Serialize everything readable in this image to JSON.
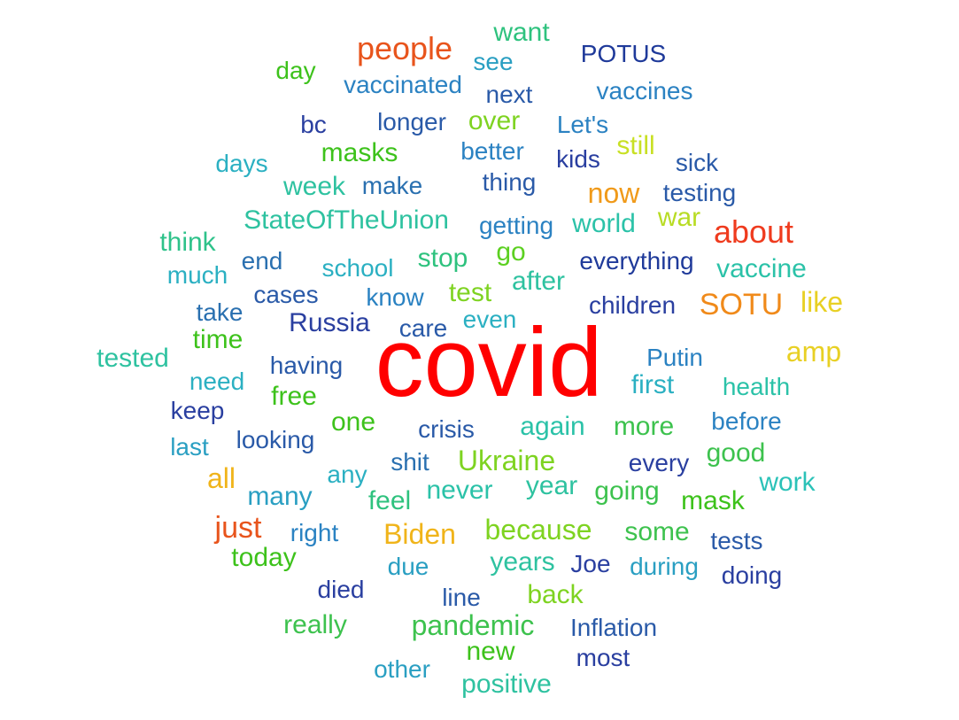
{
  "words": [
    {
      "text": "covid",
      "color": "#ff0000"
    },
    {
      "text": "people",
      "color": "#e8541c"
    },
    {
      "text": "want",
      "color": "#2ec27e"
    },
    {
      "text": "POTUS",
      "color": "#1f3a9a"
    },
    {
      "text": "day",
      "color": "#3dc21b"
    },
    {
      "text": "see",
      "color": "#2a9fc2"
    },
    {
      "text": "vaccinated",
      "color": "#2b82c2"
    },
    {
      "text": "next",
      "color": "#2a5aa8"
    },
    {
      "text": "vaccines",
      "color": "#2b82c2"
    },
    {
      "text": "bc",
      "color": "#2a3fa0"
    },
    {
      "text": "longer",
      "color": "#2a5aa8"
    },
    {
      "text": "over",
      "color": "#7ed321"
    },
    {
      "text": "Let's",
      "color": "#2b82c2"
    },
    {
      "text": "still",
      "color": "#c8e024"
    },
    {
      "text": "masks",
      "color": "#3dc21b"
    },
    {
      "text": "better",
      "color": "#2b82c2"
    },
    {
      "text": "kids",
      "color": "#2a3fa0"
    },
    {
      "text": "days",
      "color": "#2bb0c2"
    },
    {
      "text": "sick",
      "color": "#2a5aa8"
    },
    {
      "text": "week",
      "color": "#2ec2a0"
    },
    {
      "text": "make",
      "color": "#2a70b0"
    },
    {
      "text": "thing",
      "color": "#2a5aa8"
    },
    {
      "text": "now",
      "color": "#f09a1a"
    },
    {
      "text": "testing",
      "color": "#2a5aa8"
    },
    {
      "text": "StateOfTheUnion",
      "color": "#2ec2a0"
    },
    {
      "text": "getting",
      "color": "#2b82c2"
    },
    {
      "text": "world",
      "color": "#2bc2a8"
    },
    {
      "text": "war",
      "color": "#b8dc24"
    },
    {
      "text": "about",
      "color": "#ef3b1e"
    },
    {
      "text": "think",
      "color": "#2ec28a"
    },
    {
      "text": "go",
      "color": "#5cd021"
    },
    {
      "text": "end",
      "color": "#2a70b0"
    },
    {
      "text": "school",
      "color": "#2bb0c2"
    },
    {
      "text": "stop",
      "color": "#2ec27e"
    },
    {
      "text": "everything",
      "color": "#1f3a9a"
    },
    {
      "text": "vaccine",
      "color": "#2bc2a8"
    },
    {
      "text": "much",
      "color": "#2bb0c2"
    },
    {
      "text": "after",
      "color": "#2ec2a0"
    },
    {
      "text": "cases",
      "color": "#2a5aa8"
    },
    {
      "text": "know",
      "color": "#2a82c2"
    },
    {
      "text": "test",
      "color": "#7ed321"
    },
    {
      "text": "children",
      "color": "#2a3fa0"
    },
    {
      "text": "SOTU",
      "color": "#f08a1a"
    },
    {
      "text": "like",
      "color": "#e8d024"
    },
    {
      "text": "take",
      "color": "#2a70b0"
    },
    {
      "text": "Russia",
      "color": "#2a3fa0"
    },
    {
      "text": "even",
      "color": "#2bb0c2"
    },
    {
      "text": "care",
      "color": "#2a5aa8"
    },
    {
      "text": "time",
      "color": "#3dc21b"
    },
    {
      "text": "amp",
      "color": "#e8d024"
    },
    {
      "text": "tested",
      "color": "#2ec2a0"
    },
    {
      "text": "Putin",
      "color": "#2b82c2"
    },
    {
      "text": "having",
      "color": "#2a5aa8"
    },
    {
      "text": "need",
      "color": "#2bb0c2"
    },
    {
      "text": "first",
      "color": "#2bb0c2"
    },
    {
      "text": "health",
      "color": "#2bc2a8"
    },
    {
      "text": "free",
      "color": "#3dc21b"
    },
    {
      "text": "keep",
      "color": "#2a3fa0"
    },
    {
      "text": "one",
      "color": "#3dc21b"
    },
    {
      "text": "crisis",
      "color": "#2a5aa8"
    },
    {
      "text": "again",
      "color": "#2bc2a8"
    },
    {
      "text": "more",
      "color": "#3dc24e"
    },
    {
      "text": "before",
      "color": "#2b82c2"
    },
    {
      "text": "last",
      "color": "#2a9fc2"
    },
    {
      "text": "looking",
      "color": "#2a5aa8"
    },
    {
      "text": "good",
      "color": "#3dc24e"
    },
    {
      "text": "any",
      "color": "#2bb0c2"
    },
    {
      "text": "shit",
      "color": "#2a70b0"
    },
    {
      "text": "Ukraine",
      "color": "#7ed321"
    },
    {
      "text": "every",
      "color": "#2a3fa0"
    },
    {
      "text": "all",
      "color": "#f0b41a"
    },
    {
      "text": "work",
      "color": "#2bc2b8"
    },
    {
      "text": "many",
      "color": "#2a9fc2"
    },
    {
      "text": "feel",
      "color": "#2ec27e"
    },
    {
      "text": "never",
      "color": "#2bc2a8"
    },
    {
      "text": "year",
      "color": "#2ec2a0"
    },
    {
      "text": "going",
      "color": "#3dc24e"
    },
    {
      "text": "mask",
      "color": "#3dc21b"
    },
    {
      "text": "just",
      "color": "#e8541c"
    },
    {
      "text": "Biden",
      "color": "#f0b41a"
    },
    {
      "text": "because",
      "color": "#7ed321"
    },
    {
      "text": "some",
      "color": "#3dc24e"
    },
    {
      "text": "right",
      "color": "#2a82c2"
    },
    {
      "text": "tests",
      "color": "#2a5aa8"
    },
    {
      "text": "today",
      "color": "#3dc21b"
    },
    {
      "text": "due",
      "color": "#2a9fc2"
    },
    {
      "text": "years",
      "color": "#2ec2a0"
    },
    {
      "text": "Joe",
      "color": "#2a3fa0"
    },
    {
      "text": "during",
      "color": "#2a9fc2"
    },
    {
      "text": "doing",
      "color": "#2a3fa0"
    },
    {
      "text": "died",
      "color": "#2a3fa0"
    },
    {
      "text": "line",
      "color": "#2a5aa8"
    },
    {
      "text": "back",
      "color": "#7ed321"
    },
    {
      "text": "really",
      "color": "#3dc24e"
    },
    {
      "text": "pandemic",
      "color": "#3dc24e"
    },
    {
      "text": "Inflation",
      "color": "#2a5aa8"
    },
    {
      "text": "new",
      "color": "#3dc21b"
    },
    {
      "text": "most",
      "color": "#2a3fa0"
    },
    {
      "text": "other",
      "color": "#2a9fc2"
    },
    {
      "text": "positive",
      "color": "#2ec2a0"
    }
  ]
}
